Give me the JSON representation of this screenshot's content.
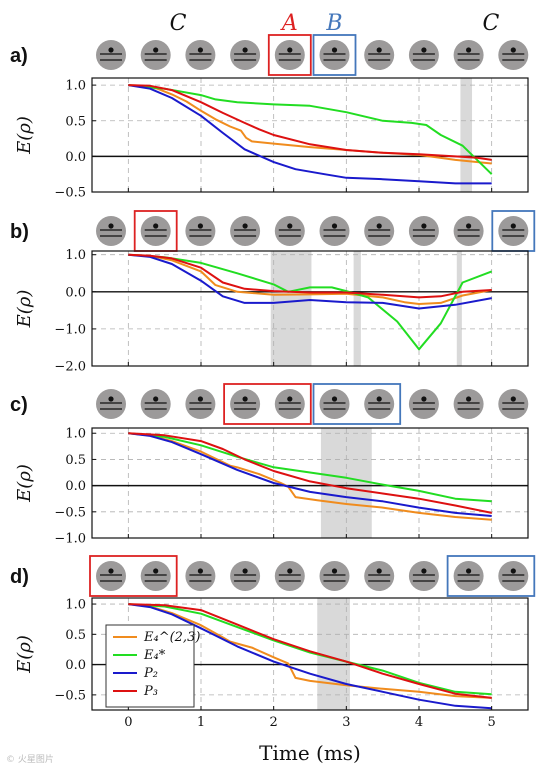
{
  "figure": {
    "xlabel": "Time (ms)",
    "ylabel": "E(ρ)",
    "watermark": "© 火星图片",
    "colors": {
      "orange": "#f08c1e",
      "green": "#22dd22",
      "blue": "#1a1acc",
      "red": "#dd1111",
      "box_A": "#dd2222",
      "box_B": "#4477bb",
      "shade": "#d9d9d9"
    },
    "group_labels": [
      {
        "text": "C",
        "color": "#111111",
        "over_qubit": 1.5
      },
      {
        "text": "A",
        "color": "#dd2222",
        "over_qubit": 4
      },
      {
        "text": "B",
        "color": "#4477bb",
        "over_qubit": 5
      },
      {
        "text": "C",
        "color": "#111111",
        "over_qubit": 8.5
      }
    ],
    "legend": [
      {
        "label": "E₄^(2,3)",
        "color": "#f08c1e"
      },
      {
        "label": "E₄*",
        "color": "#22dd22"
      },
      {
        "label": "P₂",
        "color": "#1a1acc"
      },
      {
        "label": "P₃",
        "color": "#dd1111"
      }
    ]
  },
  "chart_data": [
    {
      "type": "line",
      "panel": "a)",
      "qubit_count": 10,
      "box_A": [
        4,
        4
      ],
      "box_B": [
        5,
        5
      ],
      "xlim": [
        -0.5,
        5.5
      ],
      "ylim": [
        -0.5,
        1.1
      ],
      "xticks": [
        0,
        1,
        2,
        3,
        4,
        5
      ],
      "yticks": [
        1.0,
        0.5,
        0.0,
        -0.5
      ],
      "ytick_labels": [
        "1.0",
        "0.5",
        "0.0",
        "−0.5"
      ],
      "shaded": [
        [
          4.57,
          4.73
        ]
      ],
      "series": [
        {
          "key": "orange",
          "x": [
            0,
            0.2,
            0.4,
            0.6,
            0.8,
            1.0,
            1.2,
            1.4,
            1.55,
            1.62,
            1.7,
            2.0,
            2.5,
            3.0,
            3.5,
            4.0,
            4.5,
            5.0
          ],
          "y": [
            1.0,
            0.99,
            0.95,
            0.87,
            0.77,
            0.64,
            0.52,
            0.42,
            0.36,
            0.26,
            0.21,
            0.18,
            0.13,
            0.09,
            0.05,
            0.02,
            -0.05,
            -0.1
          ]
        },
        {
          "key": "green",
          "x": [
            0,
            0.5,
            1.0,
            1.2,
            1.5,
            2.0,
            2.5,
            3.0,
            3.5,
            3.9,
            4.1,
            4.3,
            4.6,
            5.0
          ],
          "y": [
            1.0,
            0.95,
            0.86,
            0.8,
            0.76,
            0.73,
            0.71,
            0.62,
            0.5,
            0.47,
            0.44,
            0.3,
            0.15,
            -0.25
          ]
        },
        {
          "key": "blue",
          "x": [
            0,
            0.3,
            0.6,
            1.0,
            1.3,
            1.6,
            2.0,
            2.3,
            2.7,
            3.0,
            3.5,
            4.0,
            4.5,
            5.0
          ],
          "y": [
            1.0,
            0.95,
            0.82,
            0.57,
            0.33,
            0.1,
            -0.08,
            -0.18,
            -0.25,
            -0.3,
            -0.32,
            -0.35,
            -0.38,
            -0.38
          ]
        },
        {
          "key": "red",
          "x": [
            0,
            0.3,
            0.6,
            1.0,
            1.3,
            1.6,
            1.8,
            2.0,
            2.5,
            3.0,
            3.5,
            4.0,
            4.5,
            4.8,
            5.0
          ],
          "y": [
            1.0,
            0.99,
            0.93,
            0.76,
            0.61,
            0.47,
            0.38,
            0.3,
            0.17,
            0.09,
            0.05,
            0.03,
            0.0,
            -0.02,
            -0.05
          ]
        }
      ]
    },
    {
      "type": "line",
      "panel": "b)",
      "qubit_count": 10,
      "box_A": [
        1,
        1
      ],
      "box_B": [
        9,
        9
      ],
      "xlim": [
        -0.5,
        5.5
      ],
      "ylim": [
        -2.0,
        1.1
      ],
      "xticks": [
        0,
        1,
        2,
        3,
        4,
        5
      ],
      "yticks": [
        1.0,
        0.0,
        -1.0,
        -2.0
      ],
      "ytick_labels": [
        "1.0",
        "0.0",
        "−1.0",
        "−2.0"
      ],
      "shaded": [
        [
          1.96,
          2.52
        ],
        [
          3.1,
          3.2
        ],
        [
          4.52,
          4.59
        ]
      ],
      "series": [
        {
          "key": "orange",
          "x": [
            0,
            0.3,
            0.6,
            1.0,
            1.2,
            1.5,
            2.0,
            2.5,
            3.0,
            3.5,
            3.8,
            4.0,
            4.3,
            4.6,
            5.0
          ],
          "y": [
            1.0,
            0.97,
            0.85,
            0.55,
            0.18,
            0.0,
            -0.08,
            -0.07,
            -0.05,
            -0.15,
            -0.28,
            -0.33,
            -0.3,
            -0.1,
            0.05
          ]
        },
        {
          "key": "green",
          "x": [
            0,
            0.5,
            1.0,
            1.5,
            2.0,
            2.2,
            2.5,
            2.8,
            3.0,
            3.3,
            3.7,
            4.0,
            4.3,
            4.6,
            5.0
          ],
          "y": [
            1.0,
            0.93,
            0.78,
            0.5,
            0.2,
            0.0,
            0.12,
            0.12,
            0.02,
            -0.15,
            -0.8,
            -1.55,
            -0.85,
            0.25,
            0.55
          ]
        },
        {
          "key": "blue",
          "x": [
            0,
            0.3,
            0.6,
            1.0,
            1.3,
            1.6,
            2.0,
            2.5,
            3.0,
            3.5,
            4.0,
            4.5,
            5.0
          ],
          "y": [
            1.0,
            0.94,
            0.75,
            0.3,
            -0.12,
            -0.3,
            -0.3,
            -0.22,
            -0.28,
            -0.3,
            -0.45,
            -0.35,
            -0.17
          ]
        },
        {
          "key": "red",
          "x": [
            0,
            0.3,
            0.6,
            1.0,
            1.3,
            1.6,
            2.0,
            2.5,
            3.0,
            3.5,
            4.0,
            4.3,
            4.6,
            5.0
          ],
          "y": [
            1.0,
            0.97,
            0.9,
            0.65,
            0.25,
            0.08,
            0.02,
            -0.02,
            -0.02,
            -0.08,
            -0.15,
            -0.12,
            0.0,
            0.05
          ]
        }
      ]
    },
    {
      "type": "line",
      "panel": "c)",
      "qubit_count": 10,
      "box_A": [
        3,
        4
      ],
      "box_B": [
        5,
        6
      ],
      "xlim": [
        -0.5,
        5.5
      ],
      "ylim": [
        -1.0,
        1.1
      ],
      "xticks": [
        0,
        1,
        2,
        3,
        4,
        5
      ],
      "yticks": [
        1.0,
        0.5,
        0.0,
        -0.5,
        -1.0
      ],
      "ytick_labels": [
        "1.0",
        "0.5",
        "0.0",
        "−0.5",
        "−1.0"
      ],
      "shaded": [
        [
          2.65,
          3.35
        ]
      ],
      "series": [
        {
          "key": "orange",
          "x": [
            0,
            0.3,
            0.6,
            1.0,
            1.4,
            1.5,
            1.8,
            2.1,
            2.2,
            2.3,
            2.6,
            3.0,
            3.5,
            4.0,
            4.5,
            5.0
          ],
          "y": [
            1.0,
            0.96,
            0.85,
            0.65,
            0.38,
            0.35,
            0.22,
            0.05,
            -0.02,
            -0.22,
            -0.28,
            -0.35,
            -0.42,
            -0.52,
            -0.6,
            -0.65
          ]
        },
        {
          "key": "green",
          "x": [
            0,
            0.5,
            1.0,
            1.5,
            2.0,
            2.5,
            3.0,
            3.5,
            4.0,
            4.5,
            5.0
          ],
          "y": [
            1.0,
            0.93,
            0.77,
            0.55,
            0.35,
            0.25,
            0.15,
            0.02,
            -0.1,
            -0.25,
            -0.3
          ]
        },
        {
          "key": "blue",
          "x": [
            0,
            0.3,
            0.6,
            1.0,
            1.5,
            2.0,
            2.5,
            3.0,
            3.5,
            4.0,
            4.5,
            5.0
          ],
          "y": [
            1.0,
            0.95,
            0.83,
            0.6,
            0.3,
            0.05,
            -0.12,
            -0.22,
            -0.3,
            -0.42,
            -0.52,
            -0.58
          ]
        },
        {
          "key": "red",
          "x": [
            0,
            0.5,
            1.0,
            1.3,
            1.6,
            2.0,
            2.5,
            3.0,
            3.5,
            4.0,
            4.5,
            5.0
          ],
          "y": [
            1.0,
            0.96,
            0.85,
            0.7,
            0.5,
            0.28,
            0.08,
            -0.05,
            -0.15,
            -0.25,
            -0.38,
            -0.52
          ]
        }
      ]
    },
    {
      "type": "line",
      "panel": "d)",
      "qubit_count": 10,
      "box_A": [
        0,
        1
      ],
      "box_B": [
        8,
        9
      ],
      "xlim": [
        -0.5,
        5.5
      ],
      "ylim": [
        -0.75,
        1.1
      ],
      "xticks": [
        0,
        1,
        2,
        3,
        4,
        5
      ],
      "yticks": [
        1.0,
        0.5,
        0.0,
        -0.5
      ],
      "ytick_labels": [
        "1.0",
        "0.5",
        "0.0",
        "−0.5"
      ],
      "shaded": [
        [
          2.6,
          3.05
        ]
      ],
      "series": [
        {
          "key": "orange",
          "x": [
            0,
            0.3,
            0.6,
            1.0,
            1.3,
            1.4,
            1.7,
            2.0,
            2.2,
            2.3,
            2.5,
            3.0,
            3.5,
            4.0,
            4.5,
            5.0
          ],
          "y": [
            1.0,
            0.96,
            0.85,
            0.65,
            0.45,
            0.38,
            0.28,
            0.12,
            0.02,
            -0.22,
            -0.27,
            -0.34,
            -0.4,
            -0.45,
            -0.52,
            -0.55
          ]
        },
        {
          "key": "green",
          "x": [
            0,
            0.5,
            1.0,
            1.5,
            2.0,
            2.5,
            3.0,
            3.5,
            4.0,
            4.5,
            5.0
          ],
          "y": [
            1.0,
            0.96,
            0.84,
            0.62,
            0.4,
            0.2,
            0.05,
            -0.1,
            -0.3,
            -0.45,
            -0.49
          ]
        },
        {
          "key": "blue",
          "x": [
            0,
            0.3,
            0.6,
            1.0,
            1.5,
            2.0,
            2.5,
            3.0,
            3.5,
            4.0,
            4.5,
            5.0
          ],
          "y": [
            1.0,
            0.95,
            0.83,
            0.6,
            0.3,
            0.05,
            -0.15,
            -0.32,
            -0.45,
            -0.58,
            -0.68,
            -0.72
          ]
        },
        {
          "key": "red",
          "x": [
            0,
            0.5,
            1.0,
            1.5,
            2.0,
            2.5,
            3.0,
            3.5,
            4.0,
            4.5,
            5.0
          ],
          "y": [
            1.0,
            0.98,
            0.9,
            0.66,
            0.42,
            0.22,
            0.05,
            -0.15,
            -0.32,
            -0.48,
            -0.55
          ]
        }
      ]
    }
  ]
}
